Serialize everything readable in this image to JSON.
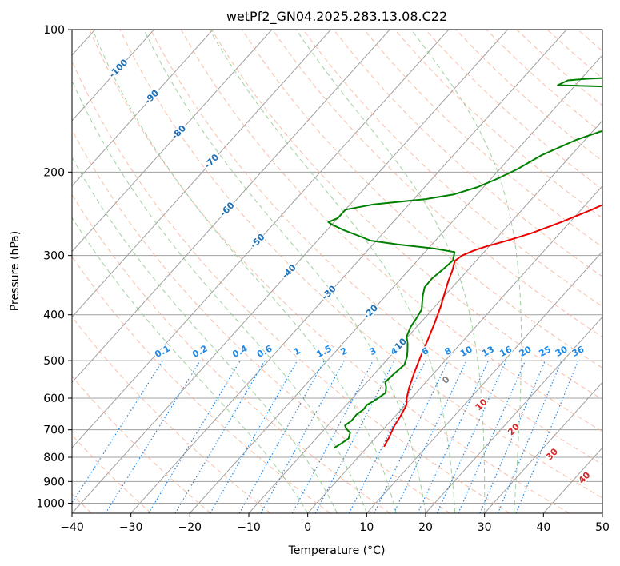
{
  "chart_data": {
    "type": "line",
    "subtype": "skew-T log-P diagram",
    "title": "wetPf2_GN04.2025.283.13.08.C22",
    "xlabel": "Temperature (°C)",
    "ylabel": "Pressure (hPa)",
    "xlim": [
      -40,
      50
    ],
    "ylim": [
      1050,
      100
    ],
    "y_scale": "log",
    "x_ticks": [
      -40,
      -30,
      -20,
      -10,
      0,
      10,
      20,
      30,
      40,
      50
    ],
    "x_tick_labels": [
      "−40",
      "−30",
      "−20",
      "−10",
      "0",
      "10",
      "20",
      "30",
      "40",
      "50"
    ],
    "y_ticks": [
      100,
      200,
      300,
      400,
      500,
      600,
      700,
      800,
      900,
      1000
    ],
    "y_tick_labels": [
      "100",
      "200",
      "300",
      "400",
      "500",
      "600",
      "700",
      "800",
      "900",
      "1000"
    ],
    "grid": true,
    "colors": {
      "temperature": "#ee0000",
      "dewpoint": "#008000",
      "isotherm": "#a0a0a0",
      "dry_adiabat": "#f5a88c",
      "moist_adiabat": "#8fc88f",
      "mixing_ratio": "#1e88e5",
      "isotherm_label": "#1f6fb4",
      "theta_label": "#d62728"
    },
    "series": [
      {
        "key": "temperature",
        "points": [
          [
            2.8,
            760
          ],
          [
            2.2,
            725
          ],
          [
            1.4,
            690
          ],
          [
            0.9,
            655
          ],
          [
            0.2,
            620
          ],
          [
            -0.8,
            600
          ],
          [
            -2.0,
            570
          ],
          [
            -3.4,
            530
          ],
          [
            -4.8,
            490
          ],
          [
            -6.2,
            450
          ],
          [
            -7.6,
            415
          ],
          [
            -9.0,
            385
          ],
          [
            -10.4,
            360
          ],
          [
            -11.6,
            340
          ],
          [
            -12.6,
            322
          ],
          [
            -13.6,
            308
          ],
          [
            -13.2,
            300
          ],
          [
            -12.0,
            293
          ],
          [
            -10.5,
            287
          ],
          [
            -7.5,
            278
          ],
          [
            -4.8,
            269
          ],
          [
            -1.5,
            255
          ],
          [
            1.8,
            240
          ],
          [
            4.6,
            226
          ],
          [
            6.6,
            214
          ],
          [
            8.6,
            204
          ],
          [
            11.0,
            195
          ],
          [
            13.6,
            186
          ],
          [
            16.8,
            177
          ],
          [
            20.0,
            168
          ],
          [
            22.5,
            160
          ],
          [
            25.2,
            152
          ],
          [
            28.6,
            144
          ],
          [
            31.8,
            138
          ],
          [
            34.7,
            132
          ],
          [
            36.7,
            127
          ],
          [
            37.8,
            121
          ],
          [
            38.0,
            117
          ],
          [
            38.0,
            113
          ],
          [
            38.4,
            109
          ],
          [
            39.2,
            105
          ],
          [
            40.5,
            100
          ]
        ]
      },
      {
        "key": "dewpoint",
        "points": [
          [
            -5.5,
            765
          ],
          [
            -5.0,
            750
          ],
          [
            -4.5,
            730
          ],
          [
            -5.1,
            710
          ],
          [
            -6.5,
            695
          ],
          [
            -7.1,
            685
          ],
          [
            -6.7,
            670
          ],
          [
            -6.8,
            650
          ],
          [
            -6.4,
            635
          ],
          [
            -6.5,
            620
          ],
          [
            -5.8,
            605
          ],
          [
            -5.2,
            585
          ],
          [
            -5.9,
            570
          ],
          [
            -6.9,
            555
          ],
          [
            -6.7,
            535
          ],
          [
            -6.3,
            510
          ],
          [
            -7.1,
            490
          ],
          [
            -8.0,
            475
          ],
          [
            -9.0,
            460
          ],
          [
            -10.2,
            445
          ],
          [
            -11.0,
            425
          ],
          [
            -11.4,
            405
          ],
          [
            -11.8,
            390
          ],
          [
            -12.7,
            378
          ],
          [
            -13.7,
            365
          ],
          [
            -14.7,
            350
          ],
          [
            -14.8,
            335
          ],
          [
            -14.3,
            320
          ],
          [
            -14.0,
            307
          ],
          [
            -15.0,
            295
          ],
          [
            -19.0,
            290
          ],
          [
            -26.0,
            284
          ],
          [
            -31.0,
            279
          ],
          [
            -34.0,
            272
          ],
          [
            -37.2,
            265
          ],
          [
            -40.0,
            258
          ],
          [
            -41.0,
            255
          ],
          [
            -40.0,
            250
          ],
          [
            -40.0,
            240
          ],
          [
            -36.0,
            234
          ],
          [
            -28.0,
            228
          ],
          [
            -24.0,
            223
          ],
          [
            -21.0,
            215
          ],
          [
            -18.8,
            206
          ],
          [
            -17.0,
            197
          ],
          [
            -15.0,
            184
          ],
          [
            -11.5,
            171
          ],
          [
            -6.0,
            158
          ],
          [
            -1.5,
            148
          ],
          [
            -0.2,
            142
          ],
          [
            -1.0,
            138
          ],
          [
            -3.5,
            135
          ],
          [
            -7.0,
            133
          ],
          [
            -14.0,
            132
          ],
          [
            -23.0,
            131
          ],
          [
            -22.0,
            128
          ],
          [
            -19.0,
            127
          ],
          [
            -13.0,
            126
          ],
          [
            -7.5,
            123
          ],
          [
            -6.0,
            120
          ],
          [
            -5.6,
            116
          ],
          [
            -4.8,
            110
          ],
          [
            -2.6,
            104
          ],
          [
            0.5,
            100
          ]
        ]
      }
    ],
    "isotherm_labels": [
      "-100",
      "-90",
      "-80",
      "-70",
      "-60",
      "-50",
      "-40",
      "-30",
      "-20",
      "-10"
    ],
    "mixing_ratio_labels": [
      "0.1",
      "0.2",
      "0.4",
      "0.6",
      "1",
      "1.5",
      "2",
      "3",
      "4",
      "6",
      "8",
      "10",
      "13",
      "16",
      "20",
      "25",
      "30",
      "36"
    ],
    "theta_labels": [
      "0",
      "10",
      "20",
      "30",
      "40"
    ]
  }
}
